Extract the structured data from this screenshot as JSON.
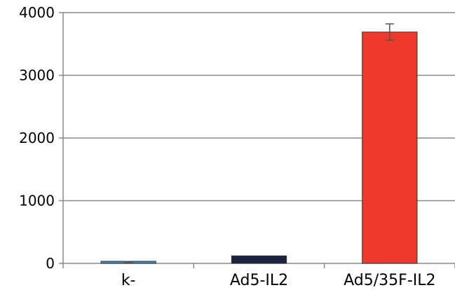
{
  "chart_data": {
    "type": "bar",
    "title": "",
    "xlabel": "",
    "ylabel": "",
    "categories": [
      "k-",
      "Ad5-IL2",
      "Ad5/35F-IL2"
    ],
    "values": [
      20,
      120,
      3690
    ],
    "error": [
      8,
      0,
      130
    ],
    "bar_colors": [
      "#3b8fc4",
      "#1a2340",
      "#ee3a2c"
    ],
    "bar_outline": "#333333",
    "ylim": [
      0,
      4000
    ],
    "yticks": [
      0,
      1000,
      2000,
      3000,
      4000
    ],
    "ytick_labels": [
      "0",
      "1000",
      "2000",
      "3000",
      "4000"
    ],
    "grid": true,
    "legend": "none"
  }
}
